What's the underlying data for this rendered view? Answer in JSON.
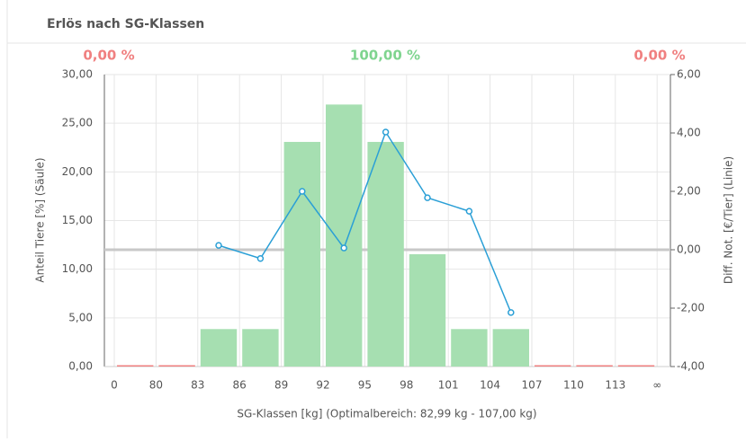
{
  "chart_data": {
    "type": "bar-line",
    "title": "Erlös nach SG-Klassen",
    "annotations": [
      {
        "text": "0,00 %",
        "color": "#f08080"
      },
      {
        "text": "100,00 %",
        "color": "#7fd48f"
      },
      {
        "text": "0,00 %",
        "color": "#f08080"
      }
    ],
    "x_label": "SG-Klassen [kg] (Optimalbereich: 82,99 kg - 107,00 kg)",
    "y_label": "Anteil Tiere [%] (Säule)",
    "y2_label": "Diff. Not. [€/Tier] (Linie)",
    "bin_edge_labels": [
      "0",
      "80",
      "83",
      "86",
      "89",
      "92",
      "95",
      "98",
      "101",
      "104",
      "107",
      "110",
      "113",
      "∞"
    ],
    "series": [
      {
        "name": "Anteil Tiere",
        "kind": "bar",
        "values": [
          0,
          0,
          3.85,
          3.85,
          23.08,
          26.92,
          23.08,
          11.54,
          3.85,
          3.85,
          0,
          0,
          0
        ],
        "colors": [
          "#f08080",
          "#f08080",
          "#a6dfb1",
          "#a6dfb1",
          "#a6dfb1",
          "#a6dfb1",
          "#a6dfb1",
          "#a6dfb1",
          "#a6dfb1",
          "#a6dfb1",
          "#f08080",
          "#f08080",
          "#f08080"
        ]
      },
      {
        "name": "Diff. Not.",
        "kind": "line",
        "axis": "y2",
        "color": "#2a9fd6",
        "values": [
          null,
          null,
          0.15,
          -0.3,
          2.0,
          0.06,
          4.03,
          1.78,
          1.32,
          -2.15,
          null,
          null,
          null
        ]
      }
    ],
    "ylim": [
      0,
      30
    ],
    "yticks": [
      {
        "value": 0,
        "label": "0,00"
      },
      {
        "value": 5,
        "label": "5,00"
      },
      {
        "value": 10,
        "label": "10,00"
      },
      {
        "value": 15,
        "label": "15,00"
      },
      {
        "value": 20,
        "label": "20,00"
      },
      {
        "value": 25,
        "label": "25,00"
      },
      {
        "value": 30,
        "label": "30,00"
      }
    ],
    "y2lim": [
      -4,
      6
    ],
    "y2ticks": [
      {
        "value": -4,
        "label": "-4,00"
      },
      {
        "value": -2,
        "label": "-2,00"
      },
      {
        "value": 0,
        "label": "0,00"
      },
      {
        "value": 2,
        "label": "2,00"
      },
      {
        "value": 4,
        "label": "4,00"
      },
      {
        "value": 6,
        "label": "6,00"
      }
    ],
    "grid": true
  }
}
